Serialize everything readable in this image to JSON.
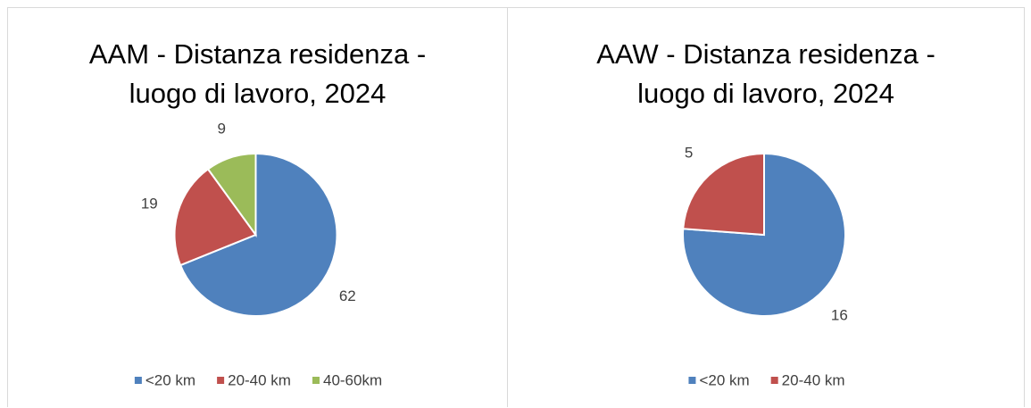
{
  "chart_data": [
    {
      "type": "pie",
      "title": "AAM - Distanza residenza - luogo di lavoro, 2024",
      "categories": [
        "<20 km",
        "20-40 km",
        "40-60km"
      ],
      "values": [
        62,
        19,
        9
      ],
      "colors": [
        "#4f81bd",
        "#c0504d",
        "#9bbb59"
      ],
      "legend": "bottom"
    },
    {
      "type": "pie",
      "title": "AAW - Distanza residenza - luogo di lavoro, 2024",
      "categories": [
        "<20 km",
        "20-40 km"
      ],
      "values": [
        16,
        5
      ],
      "colors": [
        "#4f81bd",
        "#c0504d"
      ],
      "legend": "bottom"
    }
  ]
}
